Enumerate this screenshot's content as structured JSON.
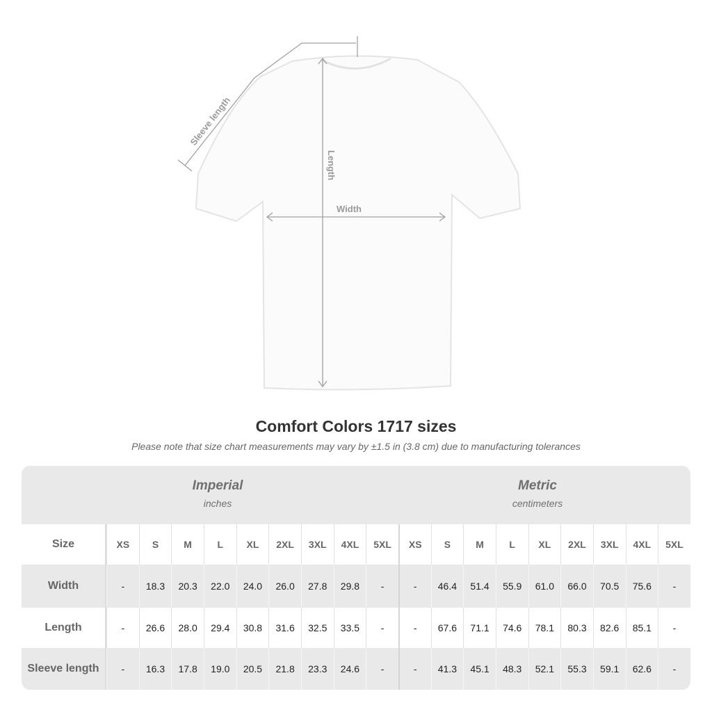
{
  "diagram": {
    "sleeve_label": "Sleeve length",
    "length_label": "Length",
    "width_label": "Width"
  },
  "title": "Comfort Colors 1717 sizes",
  "note": "Please note that size chart measurements may vary by ±1.5 in (3.8 cm) due to manufacturing tolerances",
  "imperial": {
    "name": "Imperial",
    "unit": "inches"
  },
  "metric": {
    "name": "Metric",
    "unit": "centimeters"
  },
  "size_label": "Size",
  "sizes": [
    "XS",
    "S",
    "M",
    "L",
    "XL",
    "2XL",
    "3XL",
    "4XL",
    "5XL"
  ],
  "rows": [
    {
      "label": "Width",
      "imperial": [
        "-",
        "18.3",
        "20.3",
        "22.0",
        "24.0",
        "26.0",
        "27.8",
        "29.8",
        "-"
      ],
      "metric": [
        "-",
        "46.4",
        "51.4",
        "55.9",
        "61.0",
        "66.0",
        "70.5",
        "75.6",
        "-"
      ]
    },
    {
      "label": "Length",
      "imperial": [
        "-",
        "26.6",
        "28.0",
        "29.4",
        "30.8",
        "31.6",
        "32.5",
        "33.5",
        "-"
      ],
      "metric": [
        "-",
        "67.6",
        "71.1",
        "74.6",
        "78.1",
        "80.3",
        "82.6",
        "85.1",
        "-"
      ]
    },
    {
      "label": "Sleeve length",
      "imperial": [
        "-",
        "16.3",
        "17.8",
        "19.0",
        "20.5",
        "21.8",
        "23.3",
        "24.6",
        "-"
      ],
      "metric": [
        "-",
        "41.3",
        "45.1",
        "48.3",
        "52.1",
        "55.3",
        "59.1",
        "62.6",
        "-"
      ]
    }
  ]
}
